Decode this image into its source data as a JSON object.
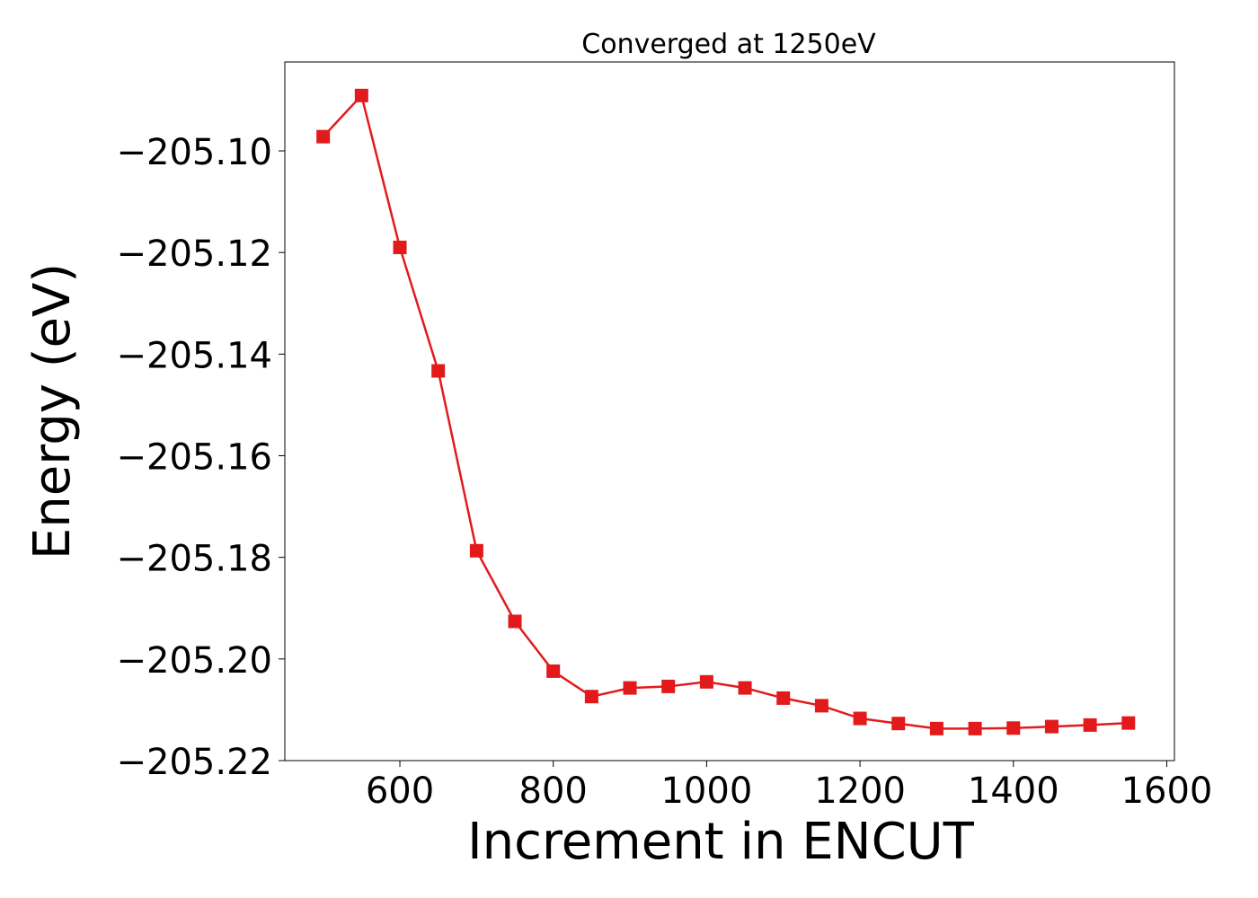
{
  "chart_data": {
    "type": "line",
    "title": "Converged at 1250eV",
    "xlabel": "Increment in ENCUT",
    "ylabel": "Energy (eV)",
    "xlim": [
      450,
      1610
    ],
    "ylim": [
      -205.22,
      -205.0825
    ],
    "x_ticks": [
      600,
      800,
      1000,
      1200,
      1400,
      1600
    ],
    "x_tick_labels": [
      "600",
      "800",
      "1000",
      "1200",
      "1400",
      "1600"
    ],
    "y_ticks": [
      -205.1,
      -205.12,
      -205.14,
      -205.16,
      -205.18,
      -205.2,
      -205.22
    ],
    "y_tick_labels": [
      "−205.10",
      "−205.12",
      "−205.14",
      "−205.16",
      "−205.18",
      "−205.20",
      "−205.22"
    ],
    "grid": false,
    "legend": "none",
    "series": [
      {
        "color": "#e31a1c",
        "marker": "square",
        "x": [
          500,
          550,
          600,
          650,
          700,
          750,
          800,
          850,
          900,
          950,
          1000,
          1050,
          1100,
          1150,
          1200,
          1250,
          1300,
          1350,
          1400,
          1450,
          1500,
          1550
        ],
        "y": [
          -205.0972,
          -205.0891,
          -205.119,
          -205.1433,
          -205.1787,
          -205.1926,
          -205.2024,
          -205.2074,
          -205.2057,
          -205.2054,
          -205.2045,
          -205.2057,
          -205.2077,
          -205.2092,
          -205.2117,
          -205.2127,
          -205.2137,
          -205.2137,
          -205.2136,
          -205.2133,
          -205.213,
          -205.2126
        ]
      }
    ]
  }
}
